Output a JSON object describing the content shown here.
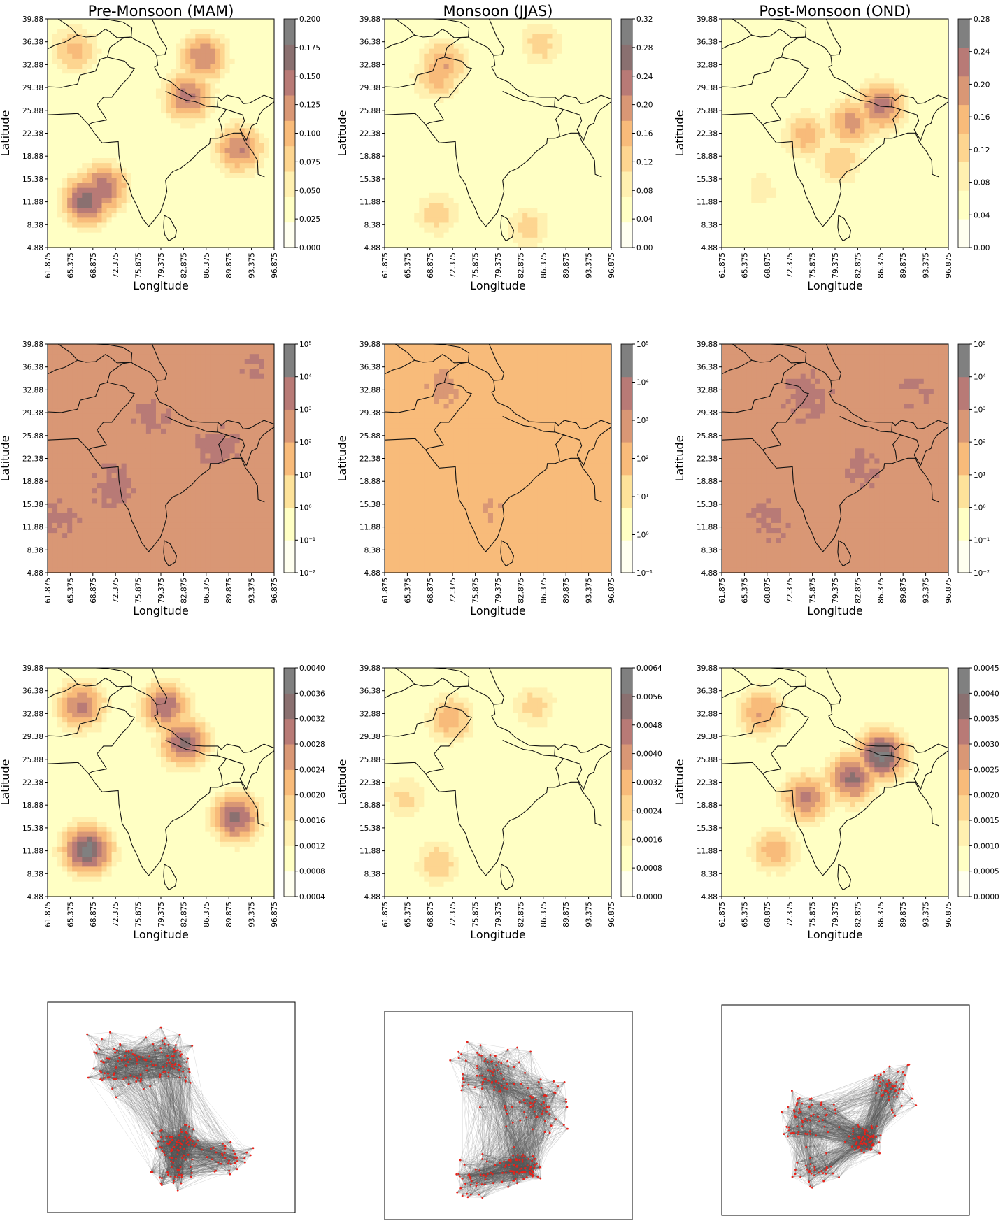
{
  "figure": {
    "column_titles": [
      "Pre-Monsoon (MAM)",
      "Monsoon (JJAS)",
      "Post-Monsoon (OND)"
    ]
  },
  "chart_data": [
    {
      "type": "heatmap",
      "row": 0,
      "col": 0,
      "title": "Pre-Monsoon (MAM)",
      "xlabel": "Longitude",
      "ylabel": "Latitude",
      "colorbar_ticks": [
        "0.000",
        "0.025",
        "0.050",
        "0.075",
        "0.100",
        "0.125",
        "0.150",
        "0.175",
        "0.200"
      ],
      "colorbar_levels": [
        0,
        0.025,
        0.05,
        0.075,
        0.1,
        0.125,
        0.15,
        0.175,
        0.2
      ],
      "colormap": [
        "#fffff0",
        "#ffffc4",
        "#fff0b0",
        "#fdd590",
        "#f8bb7a",
        "#d99775",
        "#b87a76",
        "#8a7070",
        "#808080"
      ],
      "blobs": [
        {
          "lat": 12.0,
          "lon": 68.0,
          "value": 0.19
        },
        {
          "lat": 14.0,
          "lon": 70.5,
          "value": 0.17
        },
        {
          "lat": 28.0,
          "lon": 83.5,
          "value": 0.16
        },
        {
          "lat": 20.0,
          "lon": 91.5,
          "value": 0.15
        },
        {
          "lat": 34.0,
          "lon": 86.0,
          "value": 0.15
        },
        {
          "lat": 35.0,
          "lon": 66.0,
          "value": 0.11
        }
      ]
    },
    {
      "type": "heatmap",
      "row": 0,
      "col": 1,
      "title": "Monsoon (JJAS)",
      "xlabel": "Longitude",
      "ylabel": "Latitude",
      "colorbar_ticks": [
        "0.00",
        "0.04",
        "0.08",
        "0.12",
        "0.16",
        "0.20",
        "0.24",
        "0.28",
        "0.32"
      ],
      "colorbar_levels": [
        0,
        0.04,
        0.08,
        0.12,
        0.16,
        0.2,
        0.24,
        0.28,
        0.32
      ],
      "colormap": [
        "#fffff0",
        "#ffffc4",
        "#fff0b0",
        "#fdd590",
        "#f8bb7a",
        "#d99775",
        "#b87a76",
        "#8a7070",
        "#808080"
      ],
      "blobs": [
        {
          "lat": 33.0,
          "lon": 71.0,
          "value": 0.2
        },
        {
          "lat": 31.0,
          "lon": 70.0,
          "value": 0.18
        },
        {
          "lat": 10.0,
          "lon": 70.0,
          "value": 0.15
        },
        {
          "lat": 8.0,
          "lon": 84.0,
          "value": 0.14
        },
        {
          "lat": 36.0,
          "lon": 86.0,
          "value": 0.14
        }
      ]
    },
    {
      "type": "heatmap",
      "row": 0,
      "col": 2,
      "title": "Post-Monsoon (OND)",
      "xlabel": "Longitude",
      "ylabel": "Latitude",
      "colorbar_ticks": [
        "0.00",
        "0.04",
        "0.08",
        "0.12",
        "0.16",
        "0.20",
        "0.24",
        "0.28"
      ],
      "colorbar_levels": [
        0,
        0.04,
        0.08,
        0.12,
        0.16,
        0.2,
        0.24,
        0.28
      ],
      "colormap": [
        "#fffff0",
        "#ffffc4",
        "#fff0b0",
        "#fdd590",
        "#f8bb7a",
        "#d99775",
        "#b87a76",
        "#808080"
      ],
      "blobs": [
        {
          "lat": 26.5,
          "lon": 86.5,
          "value": 0.26
        },
        {
          "lat": 24.0,
          "lon": 82.0,
          "value": 0.22
        },
        {
          "lat": 22.0,
          "lon": 75.0,
          "value": 0.18
        },
        {
          "lat": 18.0,
          "lon": 80.0,
          "value": 0.16
        },
        {
          "lat": 14.0,
          "lon": 68.0,
          "value": 0.1
        }
      ]
    },
    {
      "type": "heatmap",
      "row": 1,
      "col": 0,
      "xlabel": "Longitude",
      "ylabel": "Latitude",
      "colorbar_ticks": [
        "10⁻²",
        "10⁻¹",
        "10⁰",
        "10¹",
        "10²",
        "10³",
        "10⁴",
        "10⁵"
      ],
      "colorbar_levels": [
        -2,
        -1,
        0,
        1,
        2,
        3,
        4,
        5
      ],
      "colormap": [
        "#fffff0",
        "#ffffc4",
        "#fde29a",
        "#f8bb7a",
        "#d99775",
        "#b87a76",
        "#808080"
      ],
      "base": 2.6,
      "blobs": [
        {
          "lat": 29.0,
          "lon": 78.0,
          "value": 3.1
        },
        {
          "lat": 18.0,
          "lon": 72.0,
          "value": 3.2
        },
        {
          "lat": 13.0,
          "lon": 64.0,
          "value": 3.1
        },
        {
          "lat": 24.0,
          "lon": 88.0,
          "value": 3.2
        },
        {
          "lat": 36.0,
          "lon": 94.0,
          "value": 3.0
        },
        {
          "lat": 8.0,
          "lon": 90.0,
          "value": 1.8
        },
        {
          "lat": 36.0,
          "lon": 90.0,
          "value": 1.9
        },
        {
          "lat": 20.0,
          "lon": 95.0,
          "value": 1.9
        }
      ]
    },
    {
      "type": "heatmap",
      "row": 1,
      "col": 1,
      "xlabel": "Longitude",
      "ylabel": "Latitude",
      "colorbar_ticks": [
        "10⁻¹",
        "10⁰",
        "10¹",
        "10²",
        "10³",
        "10⁴",
        "10⁵"
      ],
      "colorbar_levels": [
        -1,
        0,
        1,
        2,
        3,
        4,
        5
      ],
      "colormap": [
        "#fffff0",
        "#ffffc4",
        "#fde29a",
        "#f8bb7a",
        "#d99775",
        "#b87a76",
        "#808080"
      ],
      "base": 2.5,
      "blobs": [
        {
          "lat": 33.0,
          "lon": 71.0,
          "value": 3.1
        },
        {
          "lat": 36.0,
          "lon": 86.0,
          "value": 1.8
        },
        {
          "lat": 24.0,
          "lon": 90.0,
          "value": 1.8
        },
        {
          "lat": 8.0,
          "lon": 64.0,
          "value": 1.8
        },
        {
          "lat": 14.0,
          "lon": 78.0,
          "value": 3.0
        }
      ]
    },
    {
      "type": "heatmap",
      "row": 1,
      "col": 2,
      "xlabel": "Longitude",
      "ylabel": "Latitude",
      "colorbar_ticks": [
        "10⁻²",
        "10⁻¹",
        "10⁰",
        "10¹",
        "10²",
        "10³",
        "10⁴",
        "10⁵"
      ],
      "colorbar_levels": [
        -2,
        -1,
        0,
        1,
        2,
        3,
        4,
        5
      ],
      "colormap": [
        "#fffff0",
        "#ffffc4",
        "#fde29a",
        "#f8bb7a",
        "#d99775",
        "#b87a76",
        "#808080"
      ],
      "base": 2.7,
      "blobs": [
        {
          "lat": 32.0,
          "lon": 75.0,
          "value": 3.2
        },
        {
          "lat": 21.0,
          "lon": 84.0,
          "value": 3.1
        },
        {
          "lat": 13.0,
          "lon": 69.0,
          "value": 3.1
        },
        {
          "lat": 33.0,
          "lon": 92.0,
          "value": 3.0
        },
        {
          "lat": 36.0,
          "lon": 70.0,
          "value": 1.9
        }
      ]
    },
    {
      "type": "heatmap",
      "row": 2,
      "col": 0,
      "xlabel": "Longitude",
      "ylabel": "Latitude",
      "colorbar_ticks": [
        "0.0004",
        "0.0008",
        "0.0012",
        "0.0016",
        "0.0020",
        "0.0024",
        "0.0028",
        "0.0032",
        "0.0036",
        "0.0040"
      ],
      "colorbar_levels": [
        0.0004,
        0.0008,
        0.0012,
        0.0016,
        0.002,
        0.0024,
        0.0028,
        0.0032,
        0.0036,
        0.004
      ],
      "colormap": [
        "#fffff0",
        "#ffffc4",
        "#fff0b0",
        "#fdd590",
        "#f8bb7a",
        "#d99775",
        "#b87a76",
        "#8a7070",
        "#808080"
      ],
      "blobs": [
        {
          "lat": 12.0,
          "lon": 68.0,
          "value": 0.0037
        },
        {
          "lat": 28.5,
          "lon": 83.0,
          "value": 0.0033
        },
        {
          "lat": 17.0,
          "lon": 91.0,
          "value": 0.0033
        },
        {
          "lat": 34.0,
          "lon": 80.0,
          "value": 0.0031
        },
        {
          "lat": 34.0,
          "lon": 67.0,
          "value": 0.0029
        }
      ]
    },
    {
      "type": "heatmap",
      "row": 2,
      "col": 1,
      "xlabel": "Longitude",
      "ylabel": "Latitude",
      "colorbar_ticks": [
        "0.0000",
        "0.0008",
        "0.0016",
        "0.0024",
        "0.0032",
        "0.0040",
        "0.0048",
        "0.0056",
        "0.0064"
      ],
      "colorbar_levels": [
        0,
        0.0008,
        0.0016,
        0.0024,
        0.0032,
        0.004,
        0.0048,
        0.0056,
        0.0064
      ],
      "colormap": [
        "#fffff0",
        "#ffffc4",
        "#fff0b0",
        "#fdd590",
        "#f8bb7a",
        "#d99775",
        "#b87a76",
        "#8a7070",
        "#808080"
      ],
      "blobs": [
        {
          "lat": 32.0,
          "lon": 72.0,
          "value": 0.0038
        },
        {
          "lat": 10.0,
          "lon": 70.0,
          "value": 0.003
        },
        {
          "lat": 34.0,
          "lon": 85.0,
          "value": 0.0028
        },
        {
          "lat": 20.0,
          "lon": 65.0,
          "value": 0.0026
        }
      ]
    },
    {
      "type": "heatmap",
      "row": 2,
      "col": 2,
      "xlabel": "Longitude",
      "ylabel": "Latitude",
      "colorbar_ticks": [
        "0.0000",
        "0.0005",
        "0.0010",
        "0.0015",
        "0.0020",
        "0.0025",
        "0.0030",
        "0.0035",
        "0.0040",
        "0.0045"
      ],
      "colorbar_levels": [
        0,
        0.0005,
        0.001,
        0.0015,
        0.002,
        0.0025,
        0.003,
        0.0035,
        0.004,
        0.0045
      ],
      "colormap": [
        "#fffff0",
        "#ffffc4",
        "#fff0b0",
        "#fdd590",
        "#f8bb7a",
        "#d99775",
        "#b87a76",
        "#8a7070",
        "#808080"
      ],
      "blobs": [
        {
          "lat": 26.5,
          "lon": 86.5,
          "value": 0.0042
        },
        {
          "lat": 23.0,
          "lon": 82.0,
          "value": 0.0036
        },
        {
          "lat": 20.0,
          "lon": 75.0,
          "value": 0.0031
        },
        {
          "lat": 33.0,
          "lon": 68.0,
          "value": 0.0026
        },
        {
          "lat": 12.0,
          "lon": 70.0,
          "value": 0.0023
        }
      ]
    },
    {
      "type": "scatter",
      "row": 3,
      "col": 0,
      "node_color": "#e8221a",
      "edge_color": "#555555",
      "edge_density": 0.15,
      "clusters": [
        {
          "x": 0.3,
          "y": 0.3,
          "spread": 0.12,
          "n": 70
        },
        {
          "x": 0.48,
          "y": 0.28,
          "spread": 0.1,
          "n": 60
        },
        {
          "x": 0.53,
          "y": 0.67,
          "spread": 0.08,
          "n": 70
        },
        {
          "x": 0.74,
          "y": 0.75,
          "spread": 0.08,
          "n": 35
        },
        {
          "x": 0.52,
          "y": 0.83,
          "spread": 0.07,
          "n": 30
        }
      ]
    },
    {
      "type": "scatter",
      "row": 3,
      "col": 1,
      "node_color": "#e8221a",
      "edge_color": "#555555",
      "edge_density": 0.15,
      "clusters": [
        {
          "x": 0.4,
          "y": 0.3,
          "spread": 0.12,
          "n": 70
        },
        {
          "x": 0.62,
          "y": 0.45,
          "spread": 0.12,
          "n": 60
        },
        {
          "x": 0.55,
          "y": 0.75,
          "spread": 0.08,
          "n": 70
        },
        {
          "x": 0.38,
          "y": 0.8,
          "spread": 0.1,
          "n": 40
        }
      ]
    },
    {
      "type": "scatter",
      "row": 3,
      "col": 2,
      "node_color": "#e8221a",
      "edge_color": "#555555",
      "edge_density": 0.15,
      "clusters": [
        {
          "x": 0.34,
          "y": 0.55,
          "spread": 0.13,
          "n": 60
        },
        {
          "x": 0.58,
          "y": 0.65,
          "spread": 0.06,
          "n": 70
        },
        {
          "x": 0.7,
          "y": 0.4,
          "spread": 0.09,
          "n": 50
        },
        {
          "x": 0.38,
          "y": 0.8,
          "spread": 0.07,
          "n": 30
        }
      ]
    }
  ],
  "axes": {
    "x_ticks": [
      "61.875",
      "65.375",
      "68.875",
      "72.375",
      "75.875",
      "79.375",
      "82.875",
      "86.375",
      "89.875",
      "93.375",
      "96.875"
    ],
    "y_ticks": [
      "39.88",
      "36.38",
      "32.88",
      "29.38",
      "25.88",
      "22.38",
      "18.88",
      "15.38",
      "11.88",
      "8.38",
      "4.88"
    ],
    "xlabel": "Longitude",
    "ylabel": "Latitude"
  }
}
